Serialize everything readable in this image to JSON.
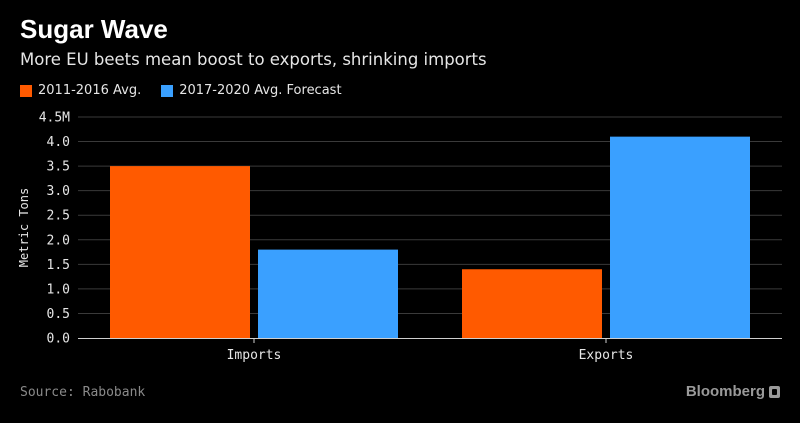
{
  "header": {
    "title": "Sugar Wave",
    "subtitle": "More EU beets mean boost to exports, shrinking imports"
  },
  "footer": {
    "source": "Source: Rabobank",
    "brand": "Bloomberg"
  },
  "colors": {
    "series_1": "#ff5a00",
    "series_2": "#3aa0ff",
    "background": "#000000",
    "gridline": "#3a3a3a"
  },
  "chart_data": {
    "type": "bar",
    "title": "Sugar Wave",
    "subtitle": "More EU beets mean boost to exports, shrinking imports",
    "categories": [
      "Imports",
      "Exports"
    ],
    "series": [
      {
        "name": "2011-2016 Avg.",
        "values": [
          3.5,
          1.4
        ]
      },
      {
        "name": "2017-2020 Avg. Forecast",
        "values": [
          1.8,
          4.1
        ]
      }
    ],
    "ylabel": "Metric Tons",
    "xlabel": "",
    "ylim": [
      0,
      4.5
    ],
    "yticks": [
      "0.0",
      "0.5",
      "1.0",
      "1.5",
      "2.0",
      "2.5",
      "3.0",
      "3.5",
      "4.0",
      "4.5M"
    ],
    "grid": true,
    "legend_position": "top-left"
  }
}
